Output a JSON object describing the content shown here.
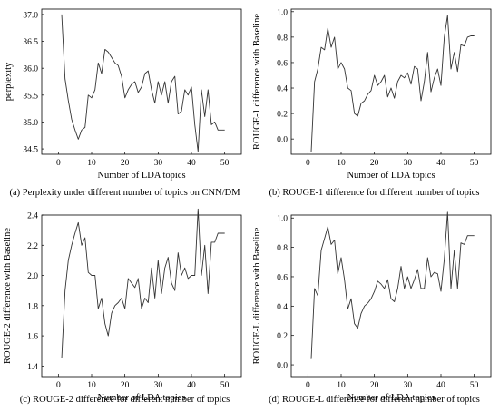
{
  "figure": {
    "panels": [
      {
        "caption": "(a) Perplexity under different number of topics on CNN/DM"
      },
      {
        "caption": "(b) ROUGE-1 difference for different number of topics"
      },
      {
        "caption": "(c) ROUGE-2 difference for different number of topics"
      },
      {
        "caption": "(d) ROUGE-L difference for different number of topics"
      }
    ]
  },
  "chart_data": [
    {
      "type": "line",
      "title": "",
      "xlabel": "Number of LDA topics",
      "ylabel": "perplexity",
      "xlim": [
        -5,
        55
      ],
      "ylim": [
        34.4,
        37.1
      ],
      "xticks": [
        0,
        10,
        20,
        30,
        40,
        50
      ],
      "yticks": [
        34.5,
        35.0,
        35.5,
        36.0,
        36.5,
        37.0
      ],
      "ytick_labels": [
        "34.5",
        "35.0",
        "35.5",
        "36.0",
        "36.5",
        "37.0"
      ],
      "x": [
        1,
        2,
        3,
        4,
        5,
        6,
        7,
        8,
        9,
        10,
        11,
        12,
        13,
        14,
        15,
        16,
        17,
        18,
        19,
        20,
        21,
        22,
        23,
        24,
        25,
        26,
        27,
        28,
        29,
        30,
        31,
        32,
        33,
        34,
        35,
        36,
        37,
        38,
        39,
        40,
        41,
        42,
        43,
        44,
        45,
        46,
        47,
        48,
        49,
        50
      ],
      "values": [
        37.0,
        35.8,
        35.4,
        35.05,
        34.85,
        34.68,
        34.85,
        34.9,
        35.5,
        35.45,
        35.6,
        36.1,
        35.9,
        36.35,
        36.3,
        36.2,
        36.1,
        36.05,
        35.85,
        35.45,
        35.6,
        35.7,
        35.75,
        35.55,
        35.65,
        35.9,
        35.95,
        35.6,
        35.35,
        35.75,
        35.5,
        35.75,
        35.35,
        35.75,
        35.85,
        35.15,
        35.2,
        35.6,
        35.5,
        35.65,
        34.95,
        34.45,
        35.6,
        35.1,
        35.6,
        34.95,
        35.0,
        34.85,
        34.85,
        34.85
      ]
    },
    {
      "type": "line",
      "title": "",
      "xlabel": "Number of LDA topics",
      "ylabel": "ROUGE-1 difference with Baseline",
      "xlim": [
        -5,
        55
      ],
      "ylim": [
        -0.12,
        1.02
      ],
      "xticks": [
        0,
        10,
        20,
        30,
        40,
        50
      ],
      "yticks": [
        0.0,
        0.2,
        0.4,
        0.6,
        0.8,
        1.0
      ],
      "ytick_labels": [
        "0.0",
        "0.2",
        "0.4",
        "0.6",
        "0.8",
        "1.0"
      ],
      "x": [
        1,
        2,
        3,
        4,
        5,
        6,
        7,
        8,
        9,
        10,
        11,
        12,
        13,
        14,
        15,
        16,
        17,
        18,
        19,
        20,
        21,
        22,
        23,
        24,
        25,
        26,
        27,
        28,
        29,
        30,
        31,
        32,
        33,
        34,
        35,
        36,
        37,
        38,
        39,
        40,
        41,
        42,
        43,
        44,
        45,
        46,
        47,
        48,
        49,
        50
      ],
      "values": [
        -0.1,
        0.45,
        0.55,
        0.72,
        0.7,
        0.87,
        0.72,
        0.8,
        0.55,
        0.6,
        0.55,
        0.4,
        0.38,
        0.2,
        0.18,
        0.28,
        0.3,
        0.35,
        0.38,
        0.5,
        0.42,
        0.45,
        0.5,
        0.33,
        0.4,
        0.32,
        0.45,
        0.5,
        0.48,
        0.52,
        0.43,
        0.57,
        0.55,
        0.3,
        0.45,
        0.68,
        0.37,
        0.48,
        0.55,
        0.42,
        0.8,
        0.97,
        0.55,
        0.68,
        0.53,
        0.74,
        0.73,
        0.8,
        0.81,
        0.81
      ]
    },
    {
      "type": "line",
      "title": "",
      "xlabel": "Number of LDA topics",
      "ylabel": "ROUGE-2 difference with Baseline",
      "xlim": [
        -5,
        55
      ],
      "ylim": [
        1.33,
        2.4
      ],
      "xticks": [
        0,
        10,
        20,
        30,
        40,
        50
      ],
      "yticks": [
        1.4,
        1.6,
        1.8,
        2.0,
        2.2,
        2.4
      ],
      "ytick_labels": [
        "1.4",
        "1.6",
        "1.8",
        "2.0",
        "2.2",
        "2.4"
      ],
      "x": [
        1,
        2,
        3,
        4,
        5,
        6,
        7,
        8,
        9,
        10,
        11,
        12,
        13,
        14,
        15,
        16,
        17,
        18,
        19,
        20,
        21,
        22,
        23,
        24,
        25,
        26,
        27,
        28,
        29,
        30,
        31,
        32,
        33,
        34,
        35,
        36,
        37,
        38,
        39,
        40,
        41,
        42,
        43,
        44,
        45,
        46,
        47,
        48,
        49,
        50
      ],
      "values": [
        1.45,
        1.9,
        2.1,
        2.2,
        2.28,
        2.35,
        2.2,
        2.25,
        2.02,
        2.0,
        2.0,
        1.78,
        1.85,
        1.68,
        1.6,
        1.75,
        1.8,
        1.82,
        1.85,
        1.78,
        1.98,
        1.95,
        1.92,
        1.98,
        1.78,
        1.85,
        1.82,
        2.05,
        1.85,
        2.1,
        1.88,
        2.05,
        2.12,
        1.95,
        1.9,
        2.15,
        2.0,
        2.05,
        1.98,
        2.0,
        2.0,
        2.44,
        2.0,
        2.2,
        1.88,
        2.22,
        2.22,
        2.28,
        2.28,
        2.28
      ]
    },
    {
      "type": "line",
      "title": "",
      "xlabel": "Number of LDA topics",
      "ylabel": "ROUGE-L difference with Baseline",
      "xlim": [
        -5,
        55
      ],
      "ylim": [
        -0.08,
        1.02
      ],
      "xticks": [
        0,
        10,
        20,
        30,
        40,
        50
      ],
      "yticks": [
        0.0,
        0.2,
        0.4,
        0.6,
        0.8,
        1.0
      ],
      "ytick_labels": [
        "0.0",
        "0.2",
        "0.4",
        "0.6",
        "0.8",
        "1.0"
      ],
      "x": [
        1,
        2,
        3,
        4,
        5,
        6,
        7,
        8,
        9,
        10,
        11,
        12,
        13,
        14,
        15,
        16,
        17,
        18,
        19,
        20,
        21,
        22,
        23,
        24,
        25,
        26,
        27,
        28,
        29,
        30,
        31,
        32,
        33,
        34,
        35,
        36,
        37,
        38,
        39,
        40,
        41,
        42,
        43,
        44,
        45,
        46,
        47,
        48,
        49,
        50
      ],
      "values": [
        0.04,
        0.52,
        0.47,
        0.78,
        0.86,
        0.94,
        0.82,
        0.85,
        0.62,
        0.73,
        0.58,
        0.38,
        0.45,
        0.28,
        0.25,
        0.35,
        0.4,
        0.42,
        0.45,
        0.5,
        0.57,
        0.55,
        0.52,
        0.58,
        0.45,
        0.43,
        0.52,
        0.67,
        0.52,
        0.6,
        0.52,
        0.58,
        0.65,
        0.52,
        0.52,
        0.73,
        0.6,
        0.63,
        0.62,
        0.5,
        0.72,
        1.04,
        0.52,
        0.78,
        0.52,
        0.83,
        0.82,
        0.88,
        0.88,
        0.88
      ]
    }
  ]
}
